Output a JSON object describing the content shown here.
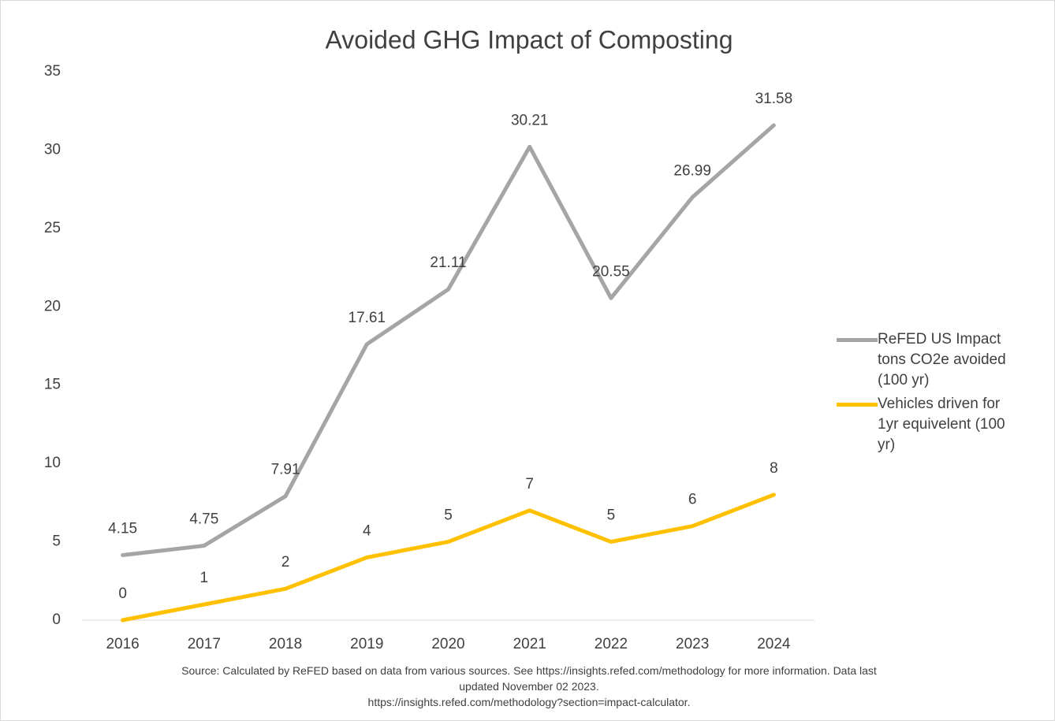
{
  "chart_data": {
    "type": "line",
    "title": "Avoided GHG Impact of Composting",
    "categories": [
      "2016",
      "2017",
      "2018",
      "2019",
      "2020",
      "2021",
      "2022",
      "2023",
      "2024"
    ],
    "series": [
      {
        "name": "ReFED US Impact tons CO2e avoided (100 yr)",
        "color": "#a5a5a5",
        "values": [
          4.15,
          4.75,
          7.91,
          17.61,
          21.11,
          30.21,
          20.55,
          26.99,
          31.58
        ]
      },
      {
        "name": "Vehicles driven for 1yr equivelent (100 yr)",
        "color": "#ffc000",
        "values": [
          0,
          1,
          2,
          4,
          5,
          7,
          5,
          6,
          8
        ]
      }
    ],
    "ylim": [
      0,
      35
    ],
    "yticks": [
      0,
      5,
      10,
      15,
      20,
      25,
      30,
      35
    ],
    "grid": false,
    "legend": "right",
    "source": "Source: Calculated by ReFED based on data from various sources. See https://insights.refed.com/methodology for more information. Data last updated November 02 2023.",
    "source_url": "https://insights.refed.com/methodology?section=impact-calculator."
  }
}
